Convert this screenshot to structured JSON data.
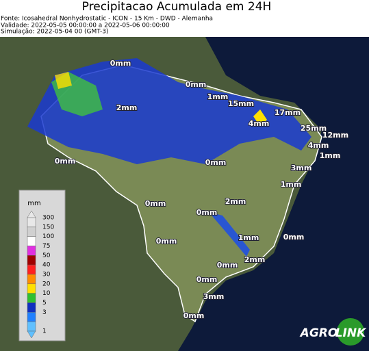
{
  "header": {
    "title": "Precipitacao Acumulada em 24H",
    "lines": [
      "Fonte: Icosahedral Nonhydrostatic - ICON - 15 Km - DWD - Alemanha",
      "Validade: 2022-05-05 00:00:00 a 2022-05-06 00:00:00",
      "Simulação: 2022-05-04 00 (GMT-3)"
    ]
  },
  "legend": {
    "title": "mm",
    "levels": [
      {
        "label": "300",
        "color": "#e8e8e8"
      },
      {
        "label": "150",
        "color": "#d0d0d0"
      },
      {
        "label": "100",
        "color": "#ffffff"
      },
      {
        "label": "75",
        "color": "#e030e0"
      },
      {
        "label": "50",
        "color": "#a00000"
      },
      {
        "label": "40",
        "color": "#ff2020"
      },
      {
        "label": "30",
        "color": "#ff8c00"
      },
      {
        "label": "20",
        "color": "#ffe000"
      },
      {
        "label": "10",
        "color": "#30c030"
      },
      {
        "label": "5",
        "color": "#1030c0"
      },
      {
        "label": "3",
        "color": "#2080ff"
      },
      {
        "label": "1",
        "color": "#60c0ff"
      }
    ]
  },
  "map_labels": [
    "0mm",
    "0mm",
    "1mm",
    "2mm",
    "15mm",
    "17mm",
    "4mm",
    "25mm",
    "12mm",
    "4mm",
    "1mm",
    "0mm",
    "0mm",
    "3mm",
    "1mm",
    "0mm",
    "2mm",
    "0mm",
    "1mm",
    "0mm",
    "0mm",
    "2mm",
    "0mm",
    "0mm",
    "3mm",
    "0mm"
  ],
  "logo": [
    "AGRO",
    "LINK"
  ]
}
